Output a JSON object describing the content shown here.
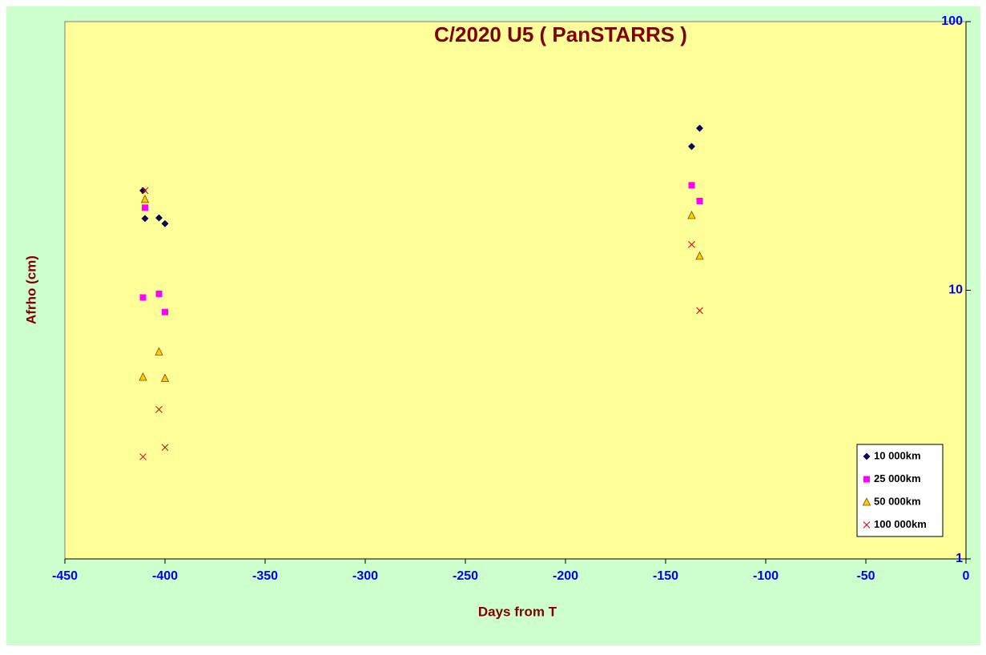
{
  "chart_data": {
    "type": "scatter",
    "title": "C/2020 U5 ( PanSTARRS )",
    "x_label": "Days from T",
    "y_label": "Afrho (cm)",
    "xlim": [
      -450,
      0
    ],
    "xticks": [
      -450,
      -400,
      -350,
      -300,
      -250,
      -200,
      -150,
      -100,
      -50,
      0
    ],
    "ylim": [
      1,
      100
    ],
    "yticks": [
      1,
      10,
      100
    ],
    "ylog": true,
    "y_axis_side": "right",
    "grid": false,
    "legend": "lower right",
    "series": [
      {
        "name": "10 000km",
        "color": "#000080",
        "marker": "diamond",
        "x": [
          -411,
          -410,
          -403,
          -400,
          -137,
          -133
        ],
        "values": [
          23.5,
          18.5,
          18.6,
          17.7,
          34.3,
          40.1
        ]
      },
      {
        "name": "25 000km",
        "color": "#ff00ff",
        "marker": "square",
        "x": [
          -411,
          -410,
          -403,
          -400,
          -137,
          -133
        ],
        "values": [
          9.4,
          20.3,
          9.7,
          8.3,
          24.6,
          21.5
        ]
      },
      {
        "name": "50 000km",
        "color": "#ffcc00",
        "marker": "triangle",
        "x": [
          -411,
          -410,
          -403,
          -400,
          -137,
          -133
        ],
        "values": [
          4.75,
          21.8,
          5.9,
          4.7,
          19.0,
          13.4
        ]
      },
      {
        "name": "100 000km",
        "color": "#cc0000",
        "marker": "cross",
        "x": [
          -411,
          -410,
          -403,
          -400,
          -137,
          -133
        ],
        "values": [
          2.4,
          23.5,
          3.6,
          2.6,
          14.8,
          8.4
        ]
      }
    ]
  }
}
